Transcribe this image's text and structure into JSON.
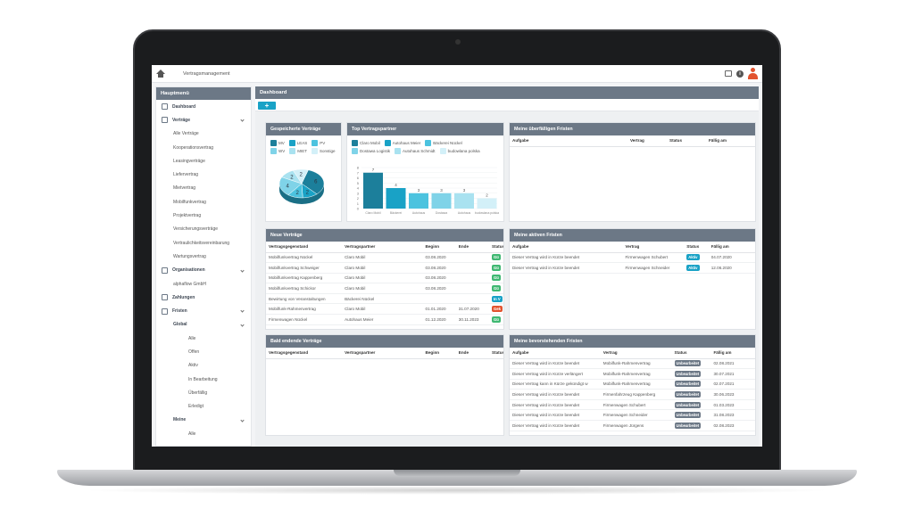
{
  "app": {
    "title": "Vertragsmanagement"
  },
  "sidebar": {
    "title": "Hauptmenü",
    "items": [
      {
        "label": "Dashboard",
        "level": "l0",
        "icon": true,
        "chevron": false
      },
      {
        "label": "Verträge",
        "level": "l0",
        "icon": true,
        "chevron": true
      },
      {
        "label": "Alle Verträge",
        "level": "l1"
      },
      {
        "label": "Kooperationsvertrag",
        "level": "l1"
      },
      {
        "label": "Leasingverträge",
        "level": "l1"
      },
      {
        "label": "Liefervertrag",
        "level": "l1"
      },
      {
        "label": "Mietvertrag",
        "level": "l1"
      },
      {
        "label": "Mobilfunkvertrag",
        "level": "l1"
      },
      {
        "label": "Projektvertrag",
        "level": "l1"
      },
      {
        "label": "Versicherungsverträge",
        "level": "l1"
      },
      {
        "label": "Vertraulichkeitsvereinbarung",
        "level": "l1"
      },
      {
        "label": "Wartungsvertrag",
        "level": "l1"
      },
      {
        "label": "Organisationen",
        "level": "l0",
        "icon": true,
        "chevron": true
      },
      {
        "label": "alphaflow GmbH",
        "level": "l1"
      },
      {
        "label": "Zahlungen",
        "level": "l0",
        "icon": true,
        "chevron": false
      },
      {
        "label": "Fristen",
        "level": "l0",
        "icon": true,
        "chevron": true
      },
      {
        "label": "Global",
        "level": "l2",
        "chevron": true
      },
      {
        "label": "Alle",
        "level": "l3"
      },
      {
        "label": "Offen",
        "level": "l3"
      },
      {
        "label": "Aktiv",
        "level": "l3"
      },
      {
        "label": "In Bearbeitung",
        "level": "l3"
      },
      {
        "label": "Überfällig",
        "level": "l3"
      },
      {
        "label": "Erledigt",
        "level": "l3"
      },
      {
        "label": "Meine",
        "level": "l2",
        "chevron": true
      },
      {
        "label": "Alle",
        "level": "l3"
      }
    ]
  },
  "dashboard": {
    "title": "Dashboard",
    "add_label": "+"
  },
  "saved": {
    "title": "Gespeicherte Verträge",
    "legend": [
      {
        "label": "MV",
        "color": "#1c7f9b"
      },
      {
        "label": "LEAS",
        "color": "#19a2c6"
      },
      {
        "label": "PV",
        "color": "#4cc3df"
      },
      {
        "label": "WV",
        "color": "#7fd3e8"
      },
      {
        "label": "MIET",
        "color": "#a9e2f0"
      },
      {
        "label": "Sonstige",
        "color": "#d3f0f8"
      }
    ]
  },
  "chart_data": {
    "type": "pie",
    "labels": [
      "MV",
      "LEAS",
      "PV",
      "WV",
      "MIET",
      "Sonstige"
    ],
    "values": [
      6,
      2,
      2,
      4,
      2,
      2
    ]
  },
  "top_partners": {
    "title": "Top Vertragspartner",
    "legend": [
      {
        "label": "Claro Mobil",
        "color": "#1c7f9b"
      },
      {
        "label": "Autohaus Meier",
        "color": "#19a2c6"
      },
      {
        "label": "Bäckerei Nückel",
        "color": "#4cc3df"
      },
      {
        "label": "Dostawa Logistik",
        "color": "#7fd3e8"
      },
      {
        "label": "Autohaus Schmidt",
        "color": "#a9e2f0"
      },
      {
        "label": "budowlana polska",
        "color": "#d3f0f8"
      }
    ],
    "bars": {
      "categories": [
        "Claro Mobil",
        "Bäckerei",
        "Autohaus",
        "Dostawa",
        "Autohaus",
        "budowlana polska"
      ],
      "values": [
        7,
        4,
        3,
        3,
        3,
        2
      ],
      "colors": [
        "#1c7f9b",
        "#19a2c6",
        "#4cc3df",
        "#7fd3e8",
        "#a9e2f0",
        "#d3f0f8"
      ],
      "yticks": [
        "8",
        "7",
        "6",
        "5",
        "4",
        "3",
        "2",
        "1",
        "0"
      ],
      "ymax": 8
    }
  },
  "overdue": {
    "title": "Meine überfälligen Fristen",
    "headers": [
      "Aufgabe",
      "Vertrag",
      "Status",
      "Fällig am"
    ],
    "rows": []
  },
  "new_contracts": {
    "title": "Neue Verträge",
    "headers": [
      "Vertragsgegenstand",
      "Vertragspartner",
      "Beginn",
      "Ende",
      "Status"
    ],
    "rows": [
      {
        "g": "Mobilfunkvertrag Nückel",
        "p": "Claro Mobil",
        "b": "03.08.2020",
        "e": "",
        "s": "Gü",
        "c": "#3fb872"
      },
      {
        "g": "Mobilfunkvertrag Schweiger",
        "p": "Claro Mobil",
        "b": "03.08.2020",
        "e": "",
        "s": "Gü",
        "c": "#3fb872"
      },
      {
        "g": "Mobilfunkvertrag Kappenberg",
        "p": "Claro Mobil",
        "b": "03.08.2020",
        "e": "",
        "s": "Gü",
        "c": "#3fb872"
      },
      {
        "g": "Mobilfunkvertrag Schickor",
        "p": "Claro Mobil",
        "b": "03.08.2020",
        "e": "",
        "s": "Gü",
        "c": "#3fb872"
      },
      {
        "g": "Bewirtung von Veranstaltungen",
        "p": "Bäckerei Nückel",
        "b": "",
        "e": "",
        "s": "In V",
        "c": "#19a2c6"
      },
      {
        "g": "Mobilfunk-Rahmenvertrag",
        "p": "Claro Mobil",
        "b": "01.01.2020",
        "e": "31.07.2020",
        "s": "Gek",
        "c": "#e2532f"
      },
      {
        "g": "Firmenwagen Nückel",
        "p": "Autohaus Meier",
        "b": "01.12.2020",
        "e": "30.11.2023",
        "s": "Gü",
        "c": "#3fb872"
      }
    ]
  },
  "active": {
    "title": "Meine aktiven Fristen",
    "headers": [
      "Aufgabe",
      "Vertrag",
      "Status",
      "Fällig am"
    ],
    "rows": [
      {
        "a": "Dieser Vertrag wird in Kürze beendet",
        "v": "Firmenwagen Schubert",
        "s": "Aktiv",
        "f": "04.07.2020"
      },
      {
        "a": "Dieser Vertrag wird in Kürze beendet",
        "v": "Firmenwagen Schneider",
        "s": "Aktiv",
        "f": "12.06.2020"
      }
    ]
  },
  "ending": {
    "title": "Bald endende Verträge",
    "headers": [
      "Vertragsgegenstand",
      "Vertragspartner",
      "Beginn",
      "Ende",
      "Status"
    ],
    "rows": []
  },
  "upcoming": {
    "title": "Meine bevorstehenden Fristen",
    "headers": [
      "Aufgabe",
      "Vertrag",
      "Status",
      "Fällig am"
    ],
    "rows": [
      {
        "a": "Dieser Vertrag wird in Kürze beendet",
        "v": "Mobilfunk-Rahmenvertrag",
        "s": "Unbearbeitet",
        "f": "02.08.2021"
      },
      {
        "a": "Dieser Vertrag wird in Kürze verlängert",
        "v": "Mobilfunk-Rahmenvertrag",
        "s": "Unbearbeitet",
        "f": "30.07.2021"
      },
      {
        "a": "Dieser Vertrag kann in Kürze gekündigt w",
        "v": "Mobilfunk-Rahmenvertrag",
        "s": "Unbearbeitet",
        "f": "02.07.2021"
      },
      {
        "a": "Dieser Vertrag wird in Kürze beendet",
        "v": "Firmenfahrzeug Kappenberg",
        "s": "Unbearbeitet",
        "f": "30.06.2023"
      },
      {
        "a": "Dieser Vertrag wird in Kürze beendet",
        "v": "Firmenwagen Schubert",
        "s": "Unbearbeitet",
        "f": "01.03.2023"
      },
      {
        "a": "Dieser Vertrag wird in Kürze beendet",
        "v": "Firmenwagen Schneider",
        "s": "Unbearbeitet",
        "f": "31.08.2023"
      },
      {
        "a": "Dieser Vertrag wird in Kürze beendet",
        "v": "Firmenwagen Jürgens",
        "s": "Unbearbeitet",
        "f": "02.08.2023"
      }
    ]
  }
}
